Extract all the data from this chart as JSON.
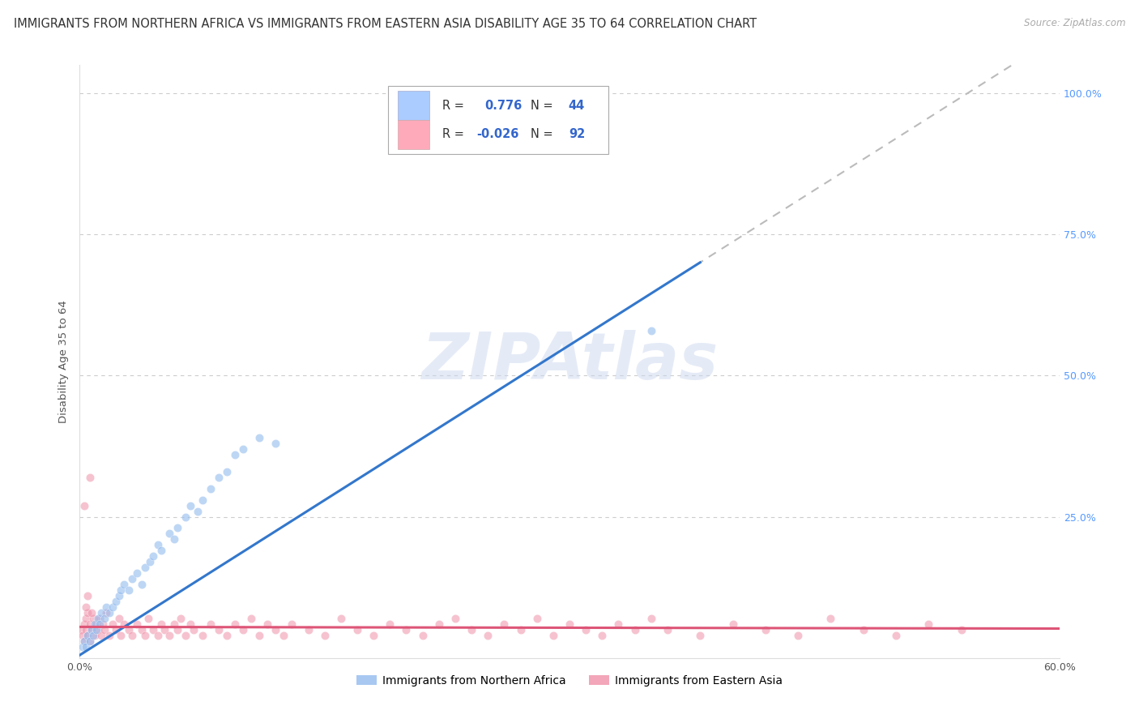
{
  "title": "IMMIGRANTS FROM NORTHERN AFRICA VS IMMIGRANTS FROM EASTERN ASIA DISABILITY AGE 35 TO 64 CORRELATION CHART",
  "source": "Source: ZipAtlas.com",
  "ylabel": "Disability Age 35 to 64",
  "xlim": [
    0.0,
    0.6
  ],
  "ylim": [
    0.0,
    1.05
  ],
  "ytick_vals": [
    0.0,
    0.25,
    0.5,
    0.75,
    1.0
  ],
  "ytick_labels_right": [
    "",
    "25.0%",
    "50.0%",
    "75.0%",
    "100.0%"
  ],
  "xtick_vals": [
    0.0,
    0.6
  ],
  "xtick_labels": [
    "0.0%",
    "60.0%"
  ],
  "watermark": "ZIPAtlas",
  "series1_color": "#92bbee",
  "series2_color": "#f090a8",
  "line1_color": "#3377cc",
  "line2_color": "#dd5577",
  "dash_color": "#bbbbbb",
  "series1_label": "Immigrants from Northern Africa",
  "series2_label": "Immigrants from Eastern Asia",
  "legend_R1": "0.776",
  "legend_N1": "44",
  "legend_R2": "-0.026",
  "legend_N2": "92",
  "legend_color1": "#aaccff",
  "legend_color2": "#ffaabb",
  "legend_text_color": "#3366cc",
  "background_color": "#ffffff",
  "grid_color": "#cccccc",
  "title_color": "#333333",
  "source_color": "#aaaaaa",
  "ylabel_color": "#555555",
  "right_tick_color": "#5599ff",
  "title_fontsize": 10.5,
  "source_fontsize": 8.5,
  "axis_label_fontsize": 9.5,
  "tick_fontsize": 9,
  "legend_fontsize": 10.5,
  "watermark_color": "#ccd8ee",
  "watermark_alpha": 0.5,
  "watermark_fontsize": 58
}
